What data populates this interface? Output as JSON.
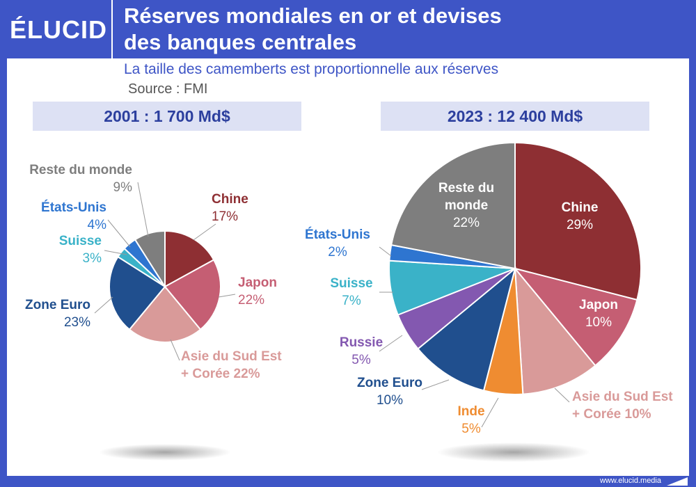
{
  "header": {
    "logo": "ÉLUCID",
    "title_line1": "Réserves mondiales en or et devises",
    "title_line2": "des banques centrales"
  },
  "subtitle": "La taille des camemberts est proportionnelle aux réserves",
  "source": "Source : FMI",
  "footer": "www.elucid.media",
  "colors": {
    "brand": "#3e55c6"
  },
  "chart_data": [
    {
      "type": "pie",
      "title": "2001 : 1 700 Md$",
      "slices": [
        {
          "label": "Chine",
          "value": 17,
          "pct": "17%",
          "color": "#8e2f33"
        },
        {
          "label": "Japon",
          "value": 22,
          "pct": "22%",
          "color": "#c55e73"
        },
        {
          "label": "Asie du Sud Est + Corée",
          "value": 22,
          "pct": "22%",
          "color": "#d99a99"
        },
        {
          "label": "Zone Euro",
          "value": 23,
          "pct": "23%",
          "color": "#204f8e"
        },
        {
          "label": "Suisse",
          "value": 3,
          "pct": "3%",
          "color": "#3ab2c8"
        },
        {
          "label": "États-Unis",
          "value": 4,
          "pct": "4%",
          "color": "#2e75d0"
        },
        {
          "label": "Reste du monde",
          "value": 9,
          "pct": "9%",
          "color": "#7e7e7e"
        }
      ]
    },
    {
      "type": "pie",
      "title": "2023 : 12 400 Md$",
      "slices": [
        {
          "label": "Chine",
          "value": 29,
          "pct": "29%",
          "color": "#8e2f33"
        },
        {
          "label": "Japon",
          "value": 10,
          "pct": "10%",
          "color": "#c55e73"
        },
        {
          "label": "Asie du Sud Est + Corée",
          "value": 10,
          "pct": "10%",
          "color": "#d99a99"
        },
        {
          "label": "Inde",
          "value": 5,
          "pct": "5%",
          "color": "#ef8c31"
        },
        {
          "label": "Zone Euro",
          "value": 10,
          "pct": "10%",
          "color": "#204f8e"
        },
        {
          "label": "Russie",
          "value": 5,
          "pct": "5%",
          "color": "#8358b0"
        },
        {
          "label": "Suisse",
          "value": 7,
          "pct": "7%",
          "color": "#3ab2c8"
        },
        {
          "label": "États-Unis",
          "value": 2,
          "pct": "2%",
          "color": "#2e75d0"
        },
        {
          "label": "Reste du monde",
          "value": 22,
          "pct": "22%",
          "color": "#7e7e7e"
        }
      ]
    }
  ]
}
